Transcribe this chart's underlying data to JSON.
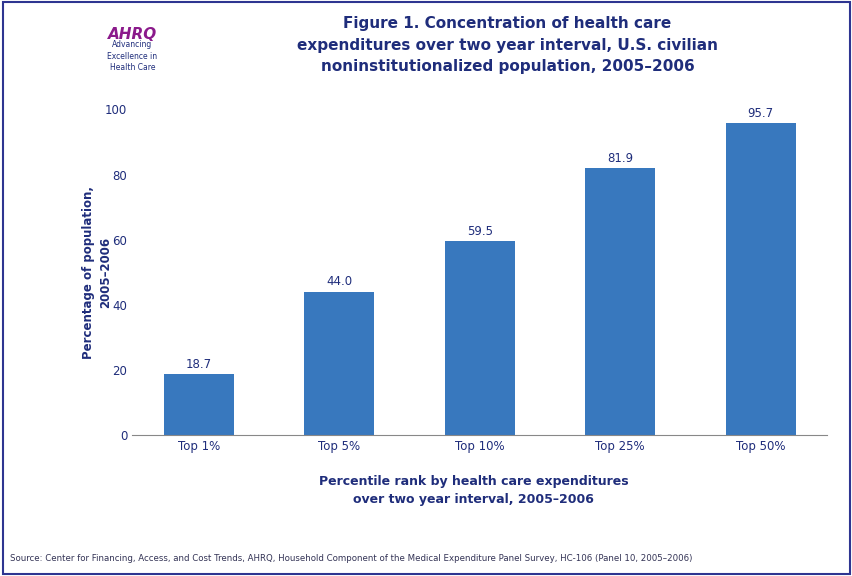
{
  "categories": [
    "Top 1%",
    "Top 5%",
    "Top 10%",
    "Top 25%",
    "Top 50%"
  ],
  "values": [
    18.7,
    44.0,
    59.5,
    81.9,
    95.7
  ],
  "bar_color": "#3878BE",
  "title_line1": "Figure 1. Concentration of health care",
  "title_line2": "expenditures over two year interval, U.S. civilian",
  "title_line3": "noninstitutionalized population, 2005–2006",
  "ylabel_line1": "Percentage of population,",
  "ylabel_line2": "2005–2006",
  "xlabel_line1": "Percentile rank by health care expenditures",
  "xlabel_line2": "over two year interval, 2005–2006",
  "ylim": [
    0,
    100
  ],
  "yticks": [
    0,
    20,
    40,
    60,
    80,
    100
  ],
  "source_text": "Source: Center for Financing, Access, and Cost Trends, AHRQ, Household Component of the Medical Expenditure Panel Survey, HC-106 (Panel 10, 2005–2006)",
  "title_color": "#1F2D7B",
  "ylabel_color": "#1F2D7B",
  "xlabel_color": "#1F2D7B",
  "bar_label_color": "#1F2D7B",
  "tick_color": "#1F2D7B",
  "source_color": "#333355",
  "header_bar_color": "#2E3591",
  "logo_bg_color": "#2E9FD0",
  "background_color": "#FFFFFF",
  "figure_bg_color": "#FFFFFF",
  "border_color": "#2E3591",
  "separator_color": "#2E3591"
}
